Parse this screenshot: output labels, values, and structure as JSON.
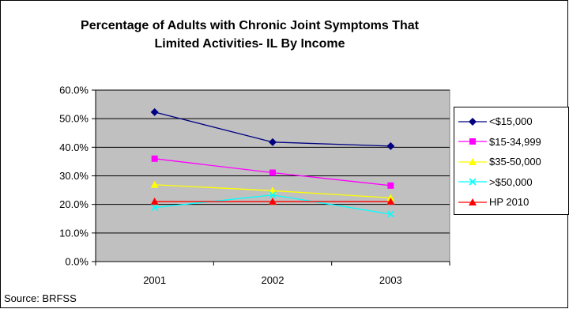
{
  "chart_data": {
    "type": "line",
    "title": "Percentage of Adults with Chronic Joint Symptoms That Limited Activities- IL By Income",
    "title_lines": [
      "Percentage of Adults with Chronic Joint Symptoms That",
      "Limited Activities- IL By Income"
    ],
    "x": [
      "2001",
      "2002",
      "2003"
    ],
    "y_ticks": [
      "0.0%",
      "10.0%",
      "20.0%",
      "30.0%",
      "40.0%",
      "50.0%",
      "60.0%"
    ],
    "ylim": [
      0,
      60
    ],
    "y_unit": "percent",
    "grid": true,
    "plot_background": "#c0c0c0",
    "legend_position": "right",
    "series": [
      {
        "name": "<$15,000",
        "values": [
          52.3,
          41.8,
          40.4
        ],
        "color": "#000080",
        "marker": "diamond"
      },
      {
        "name": "$15-34,999",
        "values": [
          36.0,
          31.1,
          26.6
        ],
        "color": "#ff00ff",
        "marker": "square"
      },
      {
        "name": "$35-50,000",
        "values": [
          26.9,
          24.8,
          22.3
        ],
        "color": "#ffff00",
        "marker": "triangle"
      },
      {
        "name": ">$50,000",
        "values": [
          18.9,
          23.3,
          16.6
        ],
        "color": "#00ffff",
        "marker": "x"
      },
      {
        "name": "HP 2010",
        "values": [
          21.0,
          21.0,
          21.0
        ],
        "color": "#ff0000",
        "marker": "triangle"
      }
    ]
  },
  "source_note": "Source: BRFSS"
}
